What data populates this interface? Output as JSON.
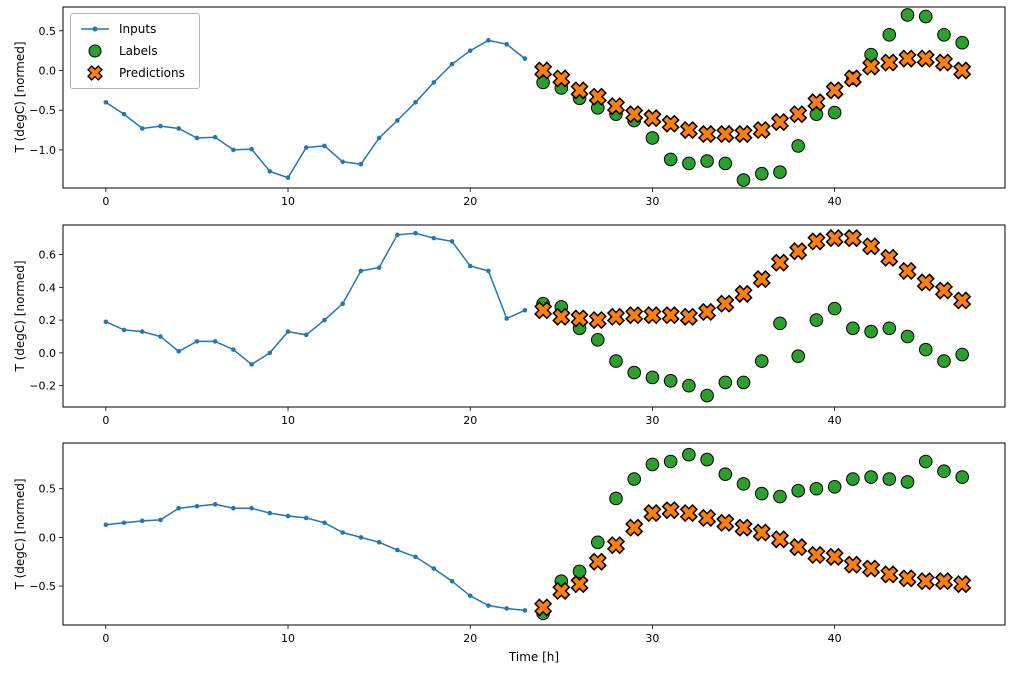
{
  "figure": {
    "xlabel": "Time [h]",
    "ylabel": "T (degC) [normed]",
    "background": "#ffffff",
    "legend": {
      "position": "upper-left",
      "items": [
        {
          "label": "Inputs",
          "marker": "line-dot",
          "color": "#1f77b4",
          "edge": "#1f77b4"
        },
        {
          "label": "Labels",
          "marker": "circle",
          "color": "#2ca02c",
          "edge": "#000000"
        },
        {
          "label": "Predictions",
          "marker": "x",
          "color": "#ff7f0e",
          "edge": "#000000"
        }
      ]
    }
  },
  "chart_data": [
    {
      "type": "line",
      "title": "",
      "ylabel": "T (degC) [normed]",
      "xlim": [
        -2.35,
        49.35
      ],
      "ylim": [
        -1.48,
        0.8
      ],
      "grid": false,
      "xticks": [
        0,
        10,
        20,
        30,
        40
      ],
      "xticklabels": [
        "0",
        "10",
        "20",
        "30",
        "40"
      ],
      "yticks": [
        0.5,
        0.0,
        -0.5,
        -1.0
      ],
      "yticklabels": [
        "0.5",
        "0.0",
        "−0.5",
        "−1.0"
      ],
      "series": [
        {
          "name": "Inputs",
          "type": "line",
          "color": "#1f77b4",
          "x": [
            0,
            1,
            2,
            3,
            4,
            5,
            6,
            7,
            8,
            9,
            10,
            11,
            12,
            13,
            14,
            15,
            16,
            17,
            18,
            19,
            20,
            21,
            22,
            23
          ],
          "y": [
            -0.4,
            -0.55,
            -0.73,
            -0.7,
            -0.73,
            -0.85,
            -0.84,
            -1.0,
            -0.99,
            -1.27,
            -1.35,
            -0.97,
            -0.95,
            -1.15,
            -1.18,
            -0.85,
            -0.63,
            -0.4,
            -0.15,
            0.08,
            0.25,
            0.38,
            0.33,
            0.15
          ]
        },
        {
          "name": "Labels",
          "type": "scatter-circle",
          "color": "#2ca02c",
          "x": [
            24,
            25,
            26,
            27,
            28,
            29,
            30,
            31,
            32,
            33,
            34,
            35,
            36,
            37,
            38,
            39,
            40,
            41,
            42,
            43,
            44,
            45,
            46,
            47
          ],
          "y": [
            -0.15,
            -0.22,
            -0.35,
            -0.47,
            -0.55,
            -0.63,
            -0.85,
            -1.12,
            -1.17,
            -1.14,
            -1.17,
            -1.38,
            -1.3,
            -1.28,
            -0.95,
            -0.55,
            -0.53,
            -0.1,
            0.2,
            0.45,
            0.7,
            0.68,
            0.45,
            0.35
          ]
        },
        {
          "name": "Predictions",
          "type": "scatter-x",
          "color": "#ff7f0e",
          "x": [
            24,
            25,
            26,
            27,
            28,
            29,
            30,
            31,
            32,
            33,
            34,
            35,
            36,
            37,
            38,
            39,
            40,
            41,
            42,
            43,
            44,
            45,
            46,
            47
          ],
          "y": [
            0.0,
            -0.1,
            -0.25,
            -0.33,
            -0.45,
            -0.55,
            -0.6,
            -0.67,
            -0.75,
            -0.8,
            -0.8,
            -0.8,
            -0.75,
            -0.65,
            -0.55,
            -0.4,
            -0.25,
            -0.1,
            0.05,
            0.1,
            0.15,
            0.15,
            0.1,
            0.0
          ]
        }
      ]
    },
    {
      "type": "line",
      "title": "",
      "ylabel": "T (degC) [normed]",
      "xlim": [
        -2.35,
        49.35
      ],
      "ylim": [
        -0.33,
        0.78
      ],
      "grid": false,
      "xticks": [
        0,
        10,
        20,
        30,
        40
      ],
      "xticklabels": [
        "0",
        "10",
        "20",
        "30",
        "40"
      ],
      "yticks": [
        0.6,
        0.4,
        0.2,
        0.0,
        -0.2
      ],
      "yticklabels": [
        "0.6",
        "0.4",
        "0.2",
        "0.0",
        "−0.2"
      ],
      "series": [
        {
          "name": "Inputs",
          "type": "line",
          "color": "#1f77b4",
          "x": [
            0,
            1,
            2,
            3,
            4,
            5,
            6,
            7,
            8,
            9,
            10,
            11,
            12,
            13,
            14,
            15,
            16,
            17,
            18,
            19,
            20,
            21,
            22,
            23
          ],
          "y": [
            0.19,
            0.14,
            0.13,
            0.1,
            0.01,
            0.07,
            0.07,
            0.02,
            -0.07,
            0.0,
            0.13,
            0.11,
            0.2,
            0.3,
            0.5,
            0.52,
            0.72,
            0.73,
            0.7,
            0.68,
            0.53,
            0.5,
            0.21,
            0.26
          ]
        },
        {
          "name": "Labels",
          "type": "scatter-circle",
          "color": "#2ca02c",
          "x": [
            24,
            25,
            26,
            27,
            28,
            29,
            30,
            31,
            32,
            33,
            34,
            35,
            36,
            37,
            38,
            39,
            40,
            41,
            42,
            43,
            44,
            45,
            46,
            47
          ],
          "y": [
            0.3,
            0.28,
            0.15,
            0.08,
            -0.05,
            -0.12,
            -0.15,
            -0.17,
            -0.2,
            -0.26,
            -0.18,
            -0.18,
            -0.05,
            0.18,
            -0.02,
            0.2,
            0.27,
            0.15,
            0.13,
            0.15,
            0.1,
            0.02,
            -0.05,
            -0.01
          ]
        },
        {
          "name": "Predictions",
          "type": "scatter-x",
          "color": "#ff7f0e",
          "x": [
            24,
            25,
            26,
            27,
            28,
            29,
            30,
            31,
            32,
            33,
            34,
            35,
            36,
            37,
            38,
            39,
            40,
            41,
            42,
            43,
            44,
            45,
            46,
            47
          ],
          "y": [
            0.26,
            0.22,
            0.21,
            0.2,
            0.22,
            0.23,
            0.23,
            0.23,
            0.22,
            0.25,
            0.3,
            0.36,
            0.45,
            0.55,
            0.62,
            0.68,
            0.7,
            0.7,
            0.65,
            0.58,
            0.5,
            0.43,
            0.38,
            0.32
          ]
        }
      ]
    },
    {
      "type": "line",
      "title": "",
      "ylabel": "T (degC) [normed]",
      "xlabel": "Time [h]",
      "xlim": [
        -2.35,
        49.35
      ],
      "ylim": [
        -0.9,
        0.97
      ],
      "grid": false,
      "xticks": [
        0,
        10,
        20,
        30,
        40
      ],
      "xticklabels": [
        "0",
        "10",
        "20",
        "30",
        "40"
      ],
      "yticks": [
        0.5,
        0.0,
        -0.5
      ],
      "yticklabels": [
        "0.5",
        "0.0",
        "−0.5"
      ],
      "series": [
        {
          "name": "Inputs",
          "type": "line",
          "color": "#1f77b4",
          "x": [
            0,
            1,
            2,
            3,
            4,
            5,
            6,
            7,
            8,
            9,
            10,
            11,
            12,
            13,
            14,
            15,
            16,
            17,
            18,
            19,
            20,
            21,
            22,
            23
          ],
          "y": [
            0.13,
            0.15,
            0.17,
            0.18,
            0.3,
            0.32,
            0.34,
            0.3,
            0.3,
            0.25,
            0.22,
            0.2,
            0.15,
            0.05,
            0.0,
            -0.05,
            -0.13,
            -0.2,
            -0.32,
            -0.45,
            -0.6,
            -0.7,
            -0.73,
            -0.75
          ]
        },
        {
          "name": "Labels",
          "type": "scatter-circle",
          "color": "#2ca02c",
          "x": [
            24,
            25,
            26,
            27,
            28,
            29,
            30,
            31,
            32,
            33,
            34,
            35,
            36,
            37,
            38,
            39,
            40,
            41,
            42,
            43,
            44,
            45,
            46,
            47
          ],
          "y": [
            -0.78,
            -0.45,
            -0.35,
            -0.05,
            0.4,
            0.6,
            0.75,
            0.78,
            0.85,
            0.8,
            0.65,
            0.55,
            0.45,
            0.42,
            0.48,
            0.5,
            0.52,
            0.6,
            0.62,
            0.6,
            0.57,
            0.78,
            0.68,
            0.62
          ]
        },
        {
          "name": "Predictions",
          "type": "scatter-x",
          "color": "#ff7f0e",
          "x": [
            24,
            25,
            26,
            27,
            28,
            29,
            30,
            31,
            32,
            33,
            34,
            35,
            36,
            37,
            38,
            39,
            40,
            41,
            42,
            43,
            44,
            45,
            46,
            47
          ],
          "y": [
            -0.72,
            -0.55,
            -0.48,
            -0.25,
            -0.08,
            0.1,
            0.25,
            0.28,
            0.25,
            0.2,
            0.15,
            0.1,
            0.05,
            -0.02,
            -0.1,
            -0.18,
            -0.2,
            -0.28,
            -0.32,
            -0.38,
            -0.42,
            -0.45,
            -0.45,
            -0.48
          ]
        }
      ]
    }
  ]
}
